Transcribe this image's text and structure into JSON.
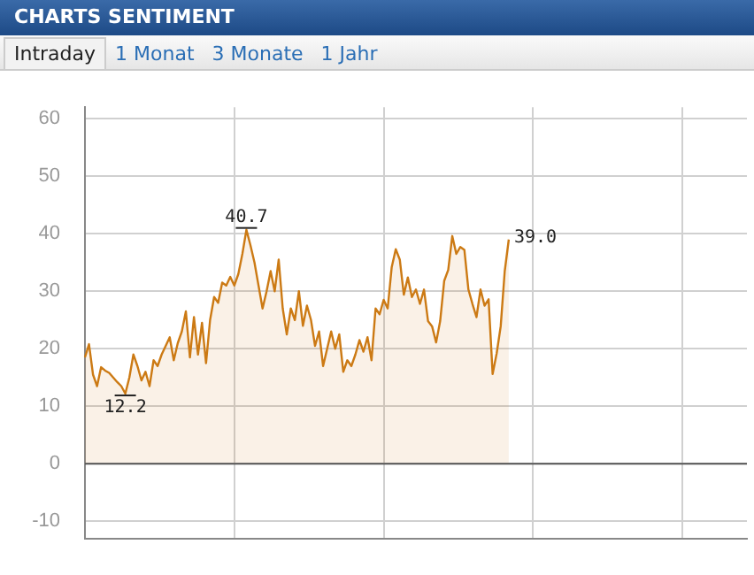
{
  "chart_data": {
    "type": "area",
    "title": "CHARTS SENTIMENT",
    "annotations": [
      "Intraday",
      "1 Monat",
      "3 Monate",
      "1 Jahr",
      {
        "text": "40.7",
        "y": 40.7
      },
      {
        "text": "12.2",
        "y": 12.2
      },
      "39.0"
    ],
    "categories": [
      null,
      null,
      null,
      null,
      null,
      null,
      null,
      null,
      null,
      null,
      null,
      null,
      null,
      null,
      null,
      null,
      null,
      null,
      null,
      null,
      null,
      null,
      null,
      null,
      null,
      null,
      null,
      null,
      null,
      null,
      null,
      null,
      null,
      null,
      null,
      null,
      null,
      null,
      null,
      null,
      null,
      null,
      null,
      null,
      null,
      null,
      null,
      null,
      null,
      null,
      null,
      null,
      null,
      null,
      null,
      null,
      null,
      null,
      null,
      null,
      null,
      null,
      null,
      null,
      null,
      null,
      null,
      null,
      null,
      null,
      null,
      null,
      null,
      null,
      null,
      null,
      null,
      null,
      null,
      null,
      null,
      null,
      null,
      null,
      null,
      null,
      null,
      null,
      null,
      null,
      null,
      null,
      null,
      null,
      null,
      null,
      null,
      null,
      null,
      null,
      null,
      null,
      null,
      null,
      null,
      null,
      null,
      null,
      null,
      null,
      null,
      null,
      null,
      null,
      null,
      null,
      null,
      null,
      null,
      null,
      null,
      null,
      null,
      null,
      null,
      null,
      null,
      null,
      null,
      null,
      null,
      null,
      null,
      null,
      null,
      null,
      null,
      null,
      null,
      null,
      null,
      null,
      null,
      null,
      null,
      null,
      null,
      null,
      null,
      null,
      null,
      null,
      null,
      null,
      null,
      null,
      null,
      null,
      null,
      null,
      null,
      null,
      null,
      null,
      null
    ],
    "series": [
      {
        "color": "#cc7a14",
        "values": [
          18.5,
          20.8,
          15.5,
          13.5,
          16.8,
          16.2,
          15.8,
          15,
          14.2,
          13.5,
          12.2,
          15,
          19,
          17,
          14.5,
          16,
          13.5,
          18,
          17,
          19,
          20.5,
          22,
          18,
          21,
          23,
          26.5,
          18.5,
          25.5,
          19,
          24.5,
          17.5,
          25,
          29,
          28,
          31.5,
          31,
          32.5,
          31,
          33,
          36.5,
          40.7,
          38,
          35,
          31,
          27,
          30,
          33.5,
          30,
          35.5,
          27,
          22.5,
          27,
          25,
          30,
          24,
          27.5,
          25,
          20.5,
          23,
          17,
          20,
          23,
          20,
          22.5,
          16,
          18,
          17,
          19,
          21.5,
          19.5,
          22,
          18,
          27,
          26,
          28.5,
          27,
          34.2,
          37.3,
          35.5,
          29.4,
          32.4,
          29,
          30.3,
          27.8,
          30.3,
          24.8,
          23.9,
          21.1,
          24.8,
          31.8,
          33.7,
          39.6,
          36.5,
          37.7,
          37.2,
          30.3,
          27.8,
          25.5,
          30.3,
          27.5,
          28.6,
          15.6,
          19.2,
          23.9,
          33.5,
          39.0,
          null,
          null,
          null,
          null,
          null,
          null,
          null,
          null,
          null,
          null,
          null,
          null,
          null,
          null,
          null,
          null,
          null,
          null,
          null,
          null,
          null,
          null,
          null,
          null,
          null,
          null,
          null,
          null,
          null,
          null,
          null,
          null,
          null,
          null,
          null,
          null,
          null,
          null,
          null,
          null,
          null,
          null,
          null,
          null,
          null,
          null,
          null,
          null,
          null,
          null,
          null,
          null,
          null,
          null,
          null,
          null,
          null,
          null,
          null
        ]
      }
    ],
    "ylim": [
      -13,
      62
    ],
    "yticks": [
      -10,
      0,
      10,
      20,
      30,
      40,
      50,
      60
    ],
    "tick_labels": "y",
    "grid": true,
    "ref_lines": [
      {
        "axis": "y",
        "value": 0,
        "color": "#555555"
      }
    ]
  }
}
